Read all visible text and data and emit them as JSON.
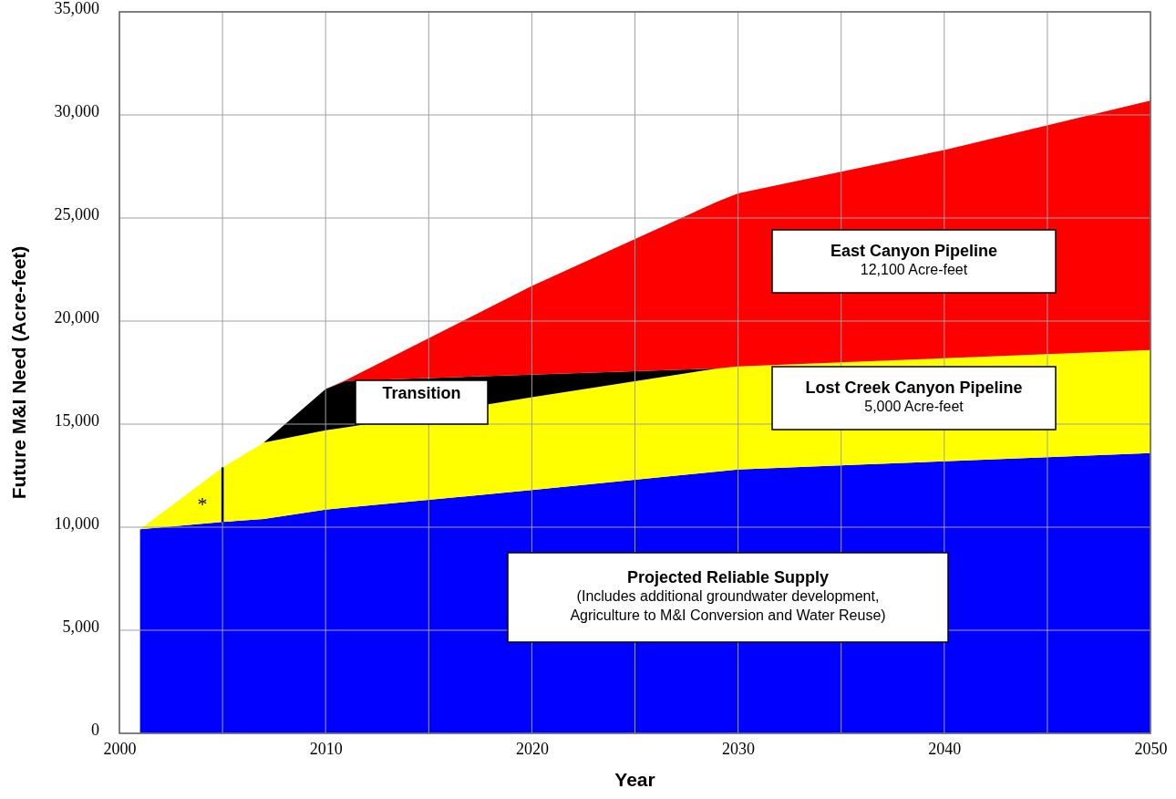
{
  "chart_data": {
    "type": "area",
    "stacked": true,
    "xlabel": "Year",
    "ylabel": "Future M&I Need (Acre-feet)",
    "x": [
      2001,
      2005,
      2007,
      2010,
      2011,
      2020,
      2029,
      2030,
      2040,
      2050
    ],
    "series": [
      {
        "color": "#0000ff",
        "values": [
          9900,
          10250,
          10400,
          10850,
          10950,
          11800,
          12700,
          12800,
          13200,
          13600
        ]
      },
      {
        "color": "#ffff00",
        "values": [
          0,
          2650,
          3700,
          3850,
          3900,
          4500,
          5000,
          5000,
          5000,
          5000
        ]
      },
      {
        "color": "#000000",
        "values": [
          null,
          null,
          0,
          2000,
          2250,
          1100,
          0,
          null,
          null,
          null
        ]
      },
      {
        "color": "#ff0000",
        "values": [
          null,
          null,
          null,
          0,
          50,
          4300,
          8100,
          8400,
          10100,
          12100
        ]
      },
      {
        "type": "line",
        "color": "#000000",
        "x": [
          2005,
          2005
        ],
        "values": [
          10250,
          12900
        ]
      }
    ],
    "xlim": [
      2000,
      2050
    ],
    "ylim": [
      0,
      35000
    ],
    "xticks": [
      2000,
      {
        "value": 2005,
        "label": null
      },
      2010,
      {
        "value": 2015,
        "label": null
      },
      2020,
      {
        "value": 2025,
        "label": null
      },
      2030,
      {
        "value": 2035,
        "label": null
      },
      2040,
      {
        "value": 2045,
        "label": null
      },
      2050
    ],
    "yticks": [
      {
        "value": 0,
        "label": "0"
      },
      {
        "value": 5000,
        "label": "5,000"
      },
      {
        "value": 10000,
        "label": "10,000"
      },
      {
        "value": 15000,
        "label": "15,000"
      },
      {
        "value": 20000,
        "label": "20,000"
      },
      {
        "value": 25000,
        "label": "25,000"
      },
      {
        "value": 30000,
        "label": "30,000"
      },
      {
        "value": 35000,
        "label": "35,000"
      }
    ],
    "grid": true,
    "annotations": [
      "East Canyon Pipeline\n12,100 Acre-feet",
      "Lost Creek Canyon Pipeline\n5,000 Acre-feet",
      "Transition",
      "Projected Reliable Supply\n(Includes additional groundwater development,\nAgriculture to M&I Conversion and Water Reuse)",
      "*"
    ]
  }
}
